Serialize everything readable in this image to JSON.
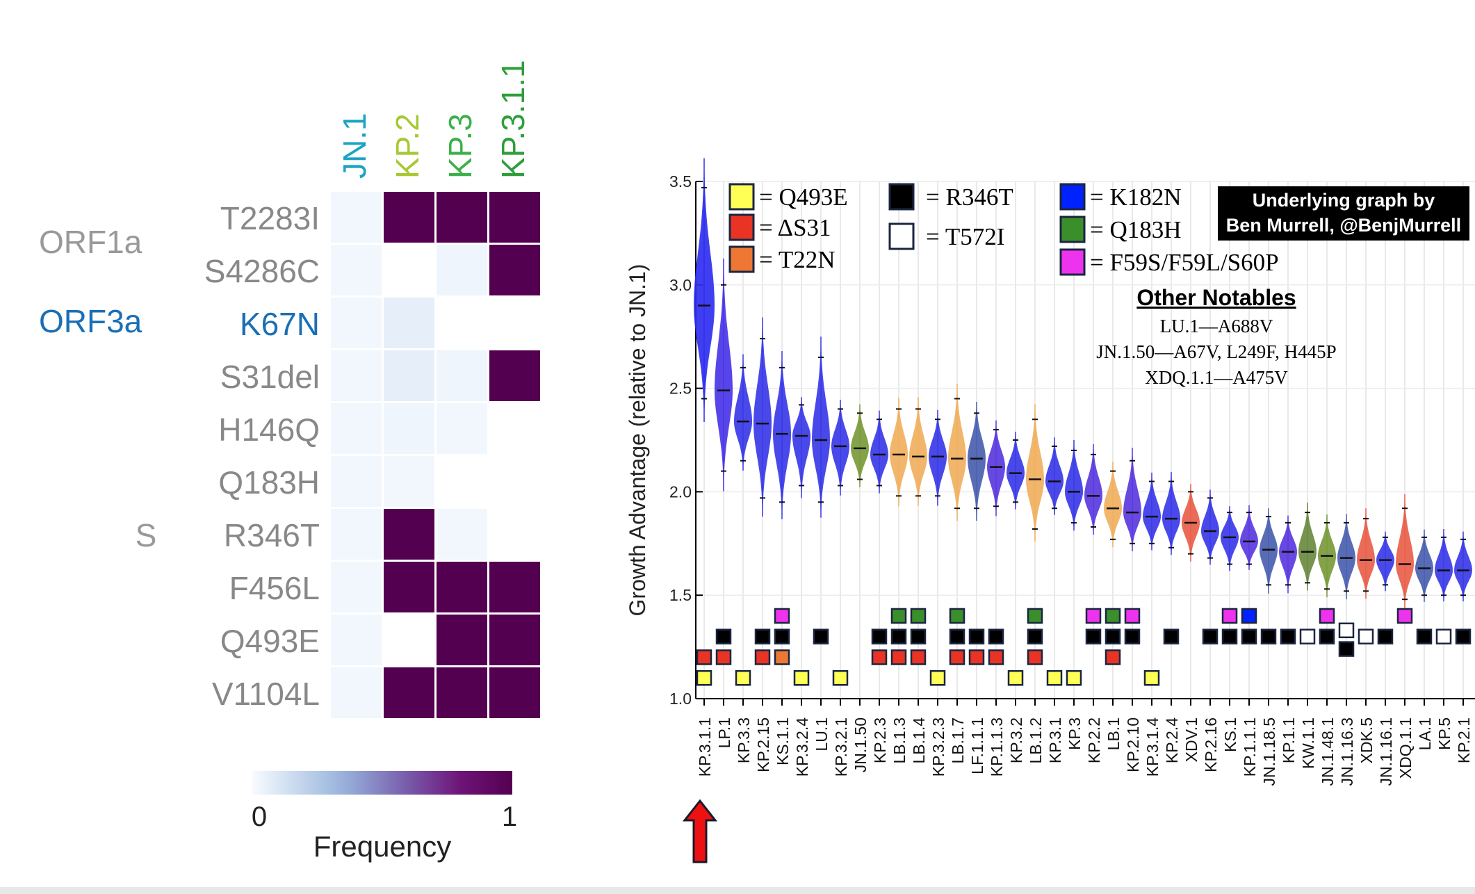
{
  "chart_data": [
    {
      "type": "heatmap",
      "columns": [
        "JN.1",
        "KP.2",
        "KP.3",
        "KP.3.1.1"
      ],
      "column_colors": [
        "#1aa3c4",
        "#a6c832",
        "#3cb04a",
        "#2e9e3a"
      ],
      "rows": [
        "T2283I",
        "S4286C",
        "K67N",
        "S31del",
        "H146Q",
        "Q183H",
        "R346T",
        "F456L",
        "Q493E",
        "V1104L"
      ],
      "row_colors": [
        "#888888",
        "#888888",
        "#1a6fb5",
        "#888888",
        "#888888",
        "#888888",
        "#888888",
        "#888888",
        "#888888",
        "#888888"
      ],
      "gene_groups": [
        {
          "label": "ORF1a",
          "row_span": [
            0,
            1
          ],
          "color": "#999999"
        },
        {
          "label": "ORF3a",
          "row_span": [
            2,
            2
          ],
          "color": "#1a6fb5"
        },
        {
          "label": "S",
          "row_span": [
            3,
            9
          ],
          "color": "#999999"
        }
      ],
      "values": [
        [
          0.02,
          1,
          1,
          1
        ],
        [
          0.02,
          0,
          0.03,
          1
        ],
        [
          0.02,
          0.06,
          0,
          0
        ],
        [
          0.02,
          0.06,
          0.03,
          1
        ],
        [
          0.02,
          0.03,
          0.02,
          0
        ],
        [
          0.02,
          0.02,
          0,
          0
        ],
        [
          0.02,
          1,
          0.02,
          0
        ],
        [
          0.02,
          1,
          1,
          1
        ],
        [
          0.02,
          0,
          1,
          1
        ],
        [
          0.02,
          1,
          1,
          1
        ]
      ],
      "colorbar": {
        "min_label": "0",
        "max_label": "1",
        "title": "Frequency",
        "range": [
          0,
          1
        ]
      }
    },
    {
      "type": "violin",
      "ylabel": "Growth Advantage (relative to JN.1)",
      "ylim": [
        1.0,
        3.5
      ],
      "yticks": [
        "1.0",
        "1.5",
        "2.0",
        "2.5",
        "3.0",
        "3.5"
      ],
      "categories": [
        "KP.3.1.1",
        "LP.1",
        "KP.3.3",
        "KP.2.15",
        "KS.1.1",
        "KP.3.2.4",
        "LU.1",
        "KP.3.2.1",
        "JN.1.50",
        "KP.2.3",
        "LB.1.3",
        "LB.1.4",
        "KP.3.2.3",
        "LB.1.7",
        "LF.1.1.1",
        "KP.1.1.3",
        "KP.3.2",
        "LB.1.2",
        "KP.3.1",
        "KP.3",
        "KP.2.2",
        "LB.1",
        "KP.2.10",
        "KP.3.1.4",
        "KP.2.4",
        "XDV.1",
        "KP.2.16",
        "KS.1",
        "KP.1.1.1",
        "JN.1.18.5",
        "KP.1.1",
        "KW.1.1",
        "JN.1.48.1",
        "JN.1.16.3",
        "XDK.5",
        "JN.1.16.1",
        "XDQ.1.1",
        "LA.1",
        "KP.5",
        "KP.2.1"
      ],
      "medians": [
        2.9,
        2.49,
        2.34,
        2.33,
        2.28,
        2.27,
        2.25,
        2.22,
        2.21,
        2.18,
        2.18,
        2.17,
        2.17,
        2.16,
        2.16,
        2.12,
        2.09,
        2.06,
        2.05,
        2.0,
        1.98,
        1.92,
        1.9,
        1.88,
        1.87,
        1.85,
        1.81,
        1.78,
        1.76,
        1.72,
        1.71,
        1.71,
        1.69,
        1.68,
        1.67,
        1.67,
        1.65,
        1.63,
        1.62,
        1.62
      ],
      "lower": [
        2.45,
        2.1,
        2.15,
        1.97,
        1.95,
        2.03,
        1.95,
        2.03,
        2.06,
        2.03,
        1.98,
        1.98,
        1.98,
        1.92,
        1.92,
        1.93,
        1.95,
        1.82,
        1.92,
        1.85,
        1.83,
        1.77,
        1.75,
        1.75,
        1.73,
        1.7,
        1.68,
        1.65,
        1.65,
        1.55,
        1.55,
        1.56,
        1.53,
        1.52,
        1.52,
        1.55,
        1.48,
        1.5,
        1.5,
        1.5
      ],
      "upper": [
        3.47,
        3.0,
        2.6,
        2.74,
        2.6,
        2.42,
        2.65,
        2.4,
        2.38,
        2.35,
        2.4,
        2.4,
        2.35,
        2.45,
        2.38,
        2.3,
        2.25,
        2.35,
        2.22,
        2.2,
        2.18,
        2.1,
        2.15,
        2.05,
        2.05,
        2.0,
        1.97,
        1.9,
        1.9,
        1.88,
        1.85,
        1.9,
        1.85,
        1.85,
        1.87,
        1.78,
        1.92,
        1.78,
        1.78,
        1.77
      ],
      "violin_colors": [
        "#2f2ff0",
        "#4a35e8",
        "#3a3ae8",
        "#3a3ae8",
        "#3a3ae8",
        "#3a3ae8",
        "#3a3ae8",
        "#3a3ae8",
        "#7a9a3a",
        "#3a3ae8",
        "#f0b060",
        "#f0b060",
        "#3a3ae8",
        "#f0b060",
        "#4a5fb0",
        "#5a3ae0",
        "#3a3ae8",
        "#f0b060",
        "#3a3ae8",
        "#3a3ae8",
        "#5a3ae0",
        "#f0b060",
        "#5a3ae0",
        "#3a3ae8",
        "#3a3ae8",
        "#e8604a",
        "#3a3ae8",
        "#3a3ae8",
        "#5a3ae0",
        "#4a5fb0",
        "#5a3ae0",
        "#6a8a40",
        "#7a9a3a",
        "#4a5fb0",
        "#e8604a",
        "#3a3ae8",
        "#e8604a",
        "#4a5fb0",
        "#3a3ae8",
        "#3a3ae8"
      ],
      "mutation_markers": [
        [
          "Q493E",
          "dS31"
        ],
        [
          "R346T",
          "dS31"
        ],
        [
          "Q493E"
        ],
        [
          "R346T",
          "dS31"
        ],
        [
          "F59S",
          "R346T",
          "T22N"
        ],
        [
          "Q493E"
        ],
        [
          "R346T"
        ],
        [
          "Q493E"
        ],
        [],
        [
          "R346T",
          "dS31"
        ],
        [
          "Q183H",
          "R346T",
          "dS31"
        ],
        [
          "Q183H",
          "R346T",
          "dS31"
        ],
        [
          "Q493E"
        ],
        [
          "Q183H",
          "R346T",
          "dS31"
        ],
        [
          "R346T",
          "dS31"
        ],
        [
          "R346T",
          "dS31"
        ],
        [
          "Q493E"
        ],
        [
          "Q183H",
          "R346T",
          "dS31"
        ],
        [
          "Q493E"
        ],
        [
          "Q493E"
        ],
        [
          "F59S",
          "R346T"
        ],
        [
          "Q183H",
          "R346T",
          "dS31"
        ],
        [
          "F59S",
          "R346T"
        ],
        [
          "Q493E"
        ],
        [
          "R346T"
        ],
        [],
        [
          "R346T"
        ],
        [
          "F59S",
          "R346T"
        ],
        [
          "K182N",
          "R346T"
        ],
        [
          "R346T"
        ],
        [
          "R346T"
        ],
        [
          "T572I"
        ],
        [
          "F59S",
          "R346T"
        ],
        [
          "T572I",
          "R346T-low"
        ],
        [
          "T572I"
        ],
        [
          "R346T"
        ],
        [
          "F59S"
        ],
        [
          "R346T"
        ],
        [
          "T572I"
        ],
        [
          "R346T"
        ]
      ],
      "legend": [
        {
          "key": "Q493E",
          "label": "= Q493E",
          "color": "#ffff55"
        },
        {
          "key": "dS31",
          "label": "= ΔS31",
          "color": "#e83325"
        },
        {
          "key": "T22N",
          "label": "= T22N",
          "color": "#ee7733"
        },
        {
          "key": "R346T",
          "label": "= R346T",
          "color": "#000000"
        },
        {
          "key": "T572I",
          "label": "= T572I",
          "color": "#ffffff"
        },
        {
          "key": "K182N",
          "label": "= K182N",
          "color": "#0022ff"
        },
        {
          "key": "Q183H",
          "label": "= Q183H",
          "color": "#3a8f2a"
        },
        {
          "key": "F59S",
          "label": "= F59S/F59L/S60P",
          "color": "#ee33ee"
        }
      ],
      "credit_lines": [
        "Underlying graph by",
        "Ben Murrell, @BenjMurrell"
      ],
      "notables": {
        "title": "Other Notables",
        "items": [
          "LU.1—A688V",
          "JN.1.50—A67V, L249F, H445P",
          "XDQ.1.1—A475V"
        ]
      },
      "highlight_arrow_category": "KP.3.1.1",
      "highlight_arrow_color": "#ee1111"
    }
  ]
}
